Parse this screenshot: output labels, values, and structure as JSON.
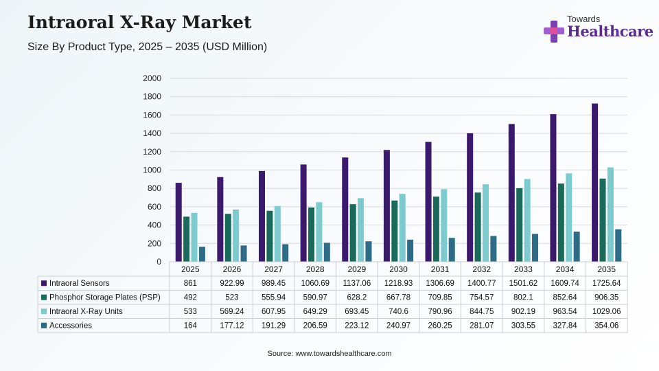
{
  "header": {
    "title": "Intraoral X-Ray Market",
    "subtitle": "Size By Product Type, 2025 – 2035 (USD Million)"
  },
  "logo": {
    "line1": "Towards",
    "line2": "Healthcare"
  },
  "footer": {
    "source": "Source: www.towardshealthcare.com"
  },
  "colors": {
    "Intraoral Sensors": "#3b1a6e",
    "Phosphor Storage Plates (PSP)": "#1a6a5c",
    "Intraoral X-Ray Units": "#7ecbcf",
    "Accessories": "#2e6b86"
  },
  "chart_data": {
    "type": "bar",
    "categories": [
      "2025",
      "2026",
      "2027",
      "2028",
      "2029",
      "2030",
      "2031",
      "2032",
      "2033",
      "2034",
      "2035"
    ],
    "series": [
      {
        "name": "Intraoral Sensors",
        "values": [
          861,
          922.99,
          989.45,
          1060.69,
          1137.06,
          1218.93,
          1306.69,
          1400.77,
          1501.62,
          1609.74,
          1725.64
        ]
      },
      {
        "name": "Phosphor Storage Plates (PSP)",
        "values": [
          492,
          523,
          555.94,
          590.97,
          628.2,
          667.78,
          709.85,
          754.57,
          802.1,
          852.64,
          906.35
        ]
      },
      {
        "name": "Intraoral X-Ray Units",
        "values": [
          533,
          569.24,
          607.95,
          649.29,
          693.45,
          740.6,
          790.96,
          844.75,
          902.19,
          963.54,
          1029.06
        ]
      },
      {
        "name": "Accessories",
        "values": [
          164,
          177.12,
          191.29,
          206.59,
          223.12,
          240.97,
          260.25,
          281.07,
          303.55,
          327.84,
          354.06
        ]
      }
    ],
    "value_labels": [
      [
        "861",
        "922.99",
        "989.45",
        "1060.69",
        "1137.06",
        "1218.93",
        "1306.69",
        "1400.77",
        "1501.62",
        "1609.74",
        "1725.64"
      ],
      [
        "492",
        "523",
        "555.94",
        "590.97",
        "628.2",
        "667.78",
        "709.85",
        "754.57",
        "802.1",
        "852.64",
        "906.35"
      ],
      [
        "533",
        "569.24",
        "607.95",
        "649.29",
        "693.45",
        "740.6",
        "790.96",
        "844.75",
        "902.19",
        "963.54",
        "1029.06"
      ],
      [
        "164",
        "177.12",
        "191.29",
        "206.59",
        "223.12",
        "240.97",
        "260.25",
        "281.07",
        "303.55",
        "327.84",
        "354.06"
      ]
    ],
    "yticks": [
      0,
      200,
      400,
      600,
      800,
      1000,
      1200,
      1400,
      1600,
      1800,
      2000
    ],
    "ylim": [
      0,
      2000
    ],
    "grid": true,
    "legend": "data-table-left"
  }
}
